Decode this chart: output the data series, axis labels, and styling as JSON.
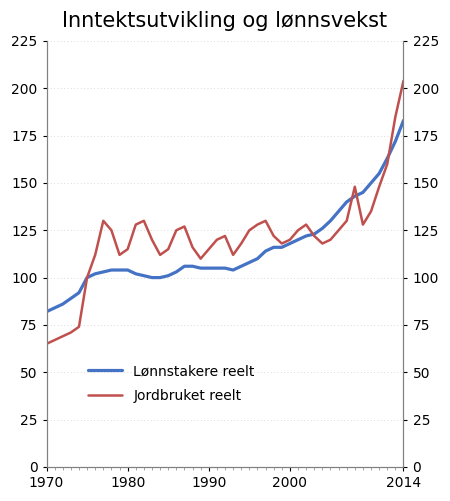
{
  "title": "Inntektsutvikling og lønnsvekst",
  "title_fontsize": 15,
  "ylim": [
    0,
    225
  ],
  "yticks": [
    0,
    25,
    50,
    75,
    100,
    125,
    150,
    175,
    200,
    225
  ],
  "xlim": [
    1970,
    2014
  ],
  "xticks": [
    1970,
    1980,
    1990,
    2000,
    2014
  ],
  "legend_labels": [
    "Lønnstakere reelt",
    "Jordbruket reelt"
  ],
  "blue_color": "#4472C4",
  "red_color": "#C0504D",
  "lonnstakere": {
    "years": [
      1970,
      1971,
      1972,
      1973,
      1974,
      1975,
      1976,
      1977,
      1978,
      1979,
      1980,
      1981,
      1982,
      1983,
      1984,
      1985,
      1986,
      1987,
      1988,
      1989,
      1990,
      1991,
      1992,
      1993,
      1994,
      1995,
      1996,
      1997,
      1998,
      1999,
      2000,
      2001,
      2002,
      2003,
      2004,
      2005,
      2006,
      2007,
      2008,
      2009,
      2010,
      2011,
      2012,
      2013,
      2014
    ],
    "values": [
      82,
      84,
      86,
      89,
      92,
      100,
      102,
      103,
      104,
      104,
      104,
      102,
      101,
      100,
      100,
      101,
      103,
      106,
      106,
      105,
      105,
      105,
      105,
      104,
      106,
      108,
      110,
      114,
      116,
      116,
      118,
      120,
      122,
      123,
      126,
      130,
      135,
      140,
      143,
      145,
      150,
      155,
      163,
      172,
      183
    ]
  },
  "jordbruket": {
    "years": [
      1970,
      1971,
      1972,
      1973,
      1974,
      1975,
      1976,
      1977,
      1978,
      1979,
      1980,
      1981,
      1982,
      1983,
      1984,
      1985,
      1986,
      1987,
      1988,
      1989,
      1990,
      1991,
      1992,
      1993,
      1994,
      1995,
      1996,
      1997,
      1998,
      1999,
      2000,
      2001,
      2002,
      2003,
      2004,
      2005,
      2006,
      2007,
      2008,
      2009,
      2010,
      2011,
      2012,
      2013,
      2014
    ],
    "values": [
      65,
      67,
      69,
      71,
      74,
      100,
      112,
      130,
      125,
      112,
      115,
      128,
      130,
      120,
      112,
      115,
      125,
      127,
      116,
      110,
      115,
      120,
      122,
      112,
      118,
      125,
      128,
      130,
      122,
      118,
      120,
      125,
      128,
      122,
      118,
      120,
      125,
      130,
      148,
      128,
      135,
      148,
      160,
      185,
      204
    ]
  }
}
